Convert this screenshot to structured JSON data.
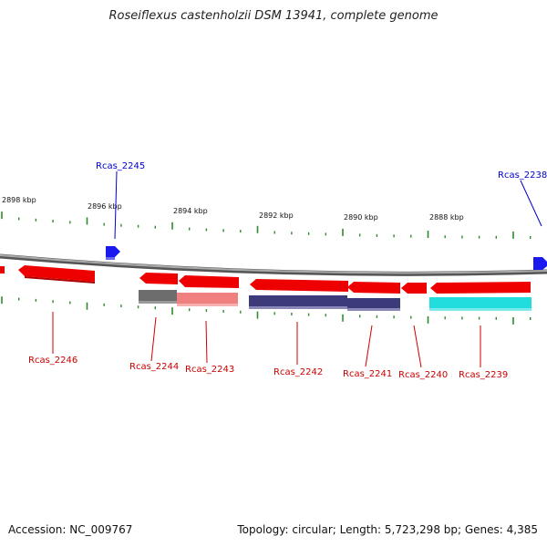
{
  "title": "Roseiflexus castenholzii DSM 13941, complete genome",
  "footer": {
    "accession": "Accession: NC_009767",
    "summary": "Topology: circular; Length: 5,723,298 bp; Genes: 4,385"
  },
  "colors": {
    "backbone": "#888888",
    "tick": "#2e8b2e",
    "forward_gene": "#0000e0",
    "reverse_gene": "#ee0000",
    "forward_label": "#0000cc",
    "reverse_label": "#cc0000"
  },
  "scale": {
    "labels": [
      "2898 kbp",
      "2896 kbp",
      "2894 kbp",
      "2892 kbp",
      "2890 kbp",
      "2888 kbp"
    ]
  },
  "genes": [
    {
      "id": "Rcas_2245",
      "strand": "+"
    },
    {
      "id": "Rcas_2238",
      "strand": "+"
    },
    {
      "id": "Rcas_2246",
      "strand": "-"
    },
    {
      "id": "Rcas_2244",
      "strand": "-"
    },
    {
      "id": "Rcas_2243",
      "strand": "-"
    },
    {
      "id": "Rcas_2242",
      "strand": "-"
    },
    {
      "id": "Rcas_2241",
      "strand": "-"
    },
    {
      "id": "Rcas_2240",
      "strand": "-"
    },
    {
      "id": "Rcas_2239",
      "strand": "-"
    }
  ],
  "feature_colors": {
    "dark_gray": "#6d6d6d",
    "light_red": "#f08080",
    "navy": "#3c3a78",
    "cyan": "#22dddd"
  }
}
